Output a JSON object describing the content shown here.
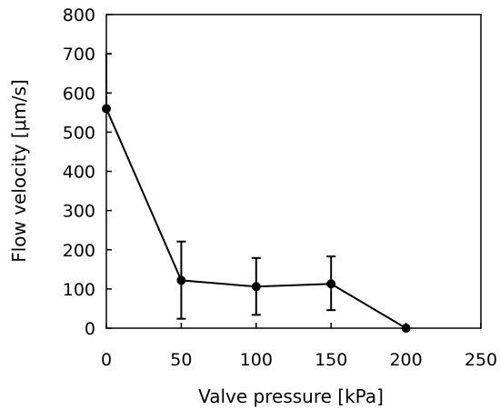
{
  "chart_data": {
    "type": "scatter",
    "title": "",
    "xlabel": "Valve pressure [kPa]",
    "ylabel": "Flow velocity [μm/s]",
    "xlim": [
      0,
      250
    ],
    "ylim": [
      0,
      800
    ],
    "xticks": [
      "0",
      "50",
      "100",
      "150",
      "200",
      "250"
    ],
    "yticks": [
      "0",
      "100",
      "200",
      "300",
      "400",
      "500",
      "600",
      "700",
      "800"
    ],
    "grid": false,
    "legend": "none",
    "series": [
      {
        "x": [
          0,
          50,
          100,
          150,
          200
        ],
        "y": [
          560,
          122,
          106,
          113,
          0
        ],
        "err_low": [
          560,
          24,
          34,
          46,
          0
        ],
        "err_high": [
          700,
          221,
          179,
          183,
          0
        ],
        "connected": true,
        "color": "#000000"
      }
    ]
  }
}
